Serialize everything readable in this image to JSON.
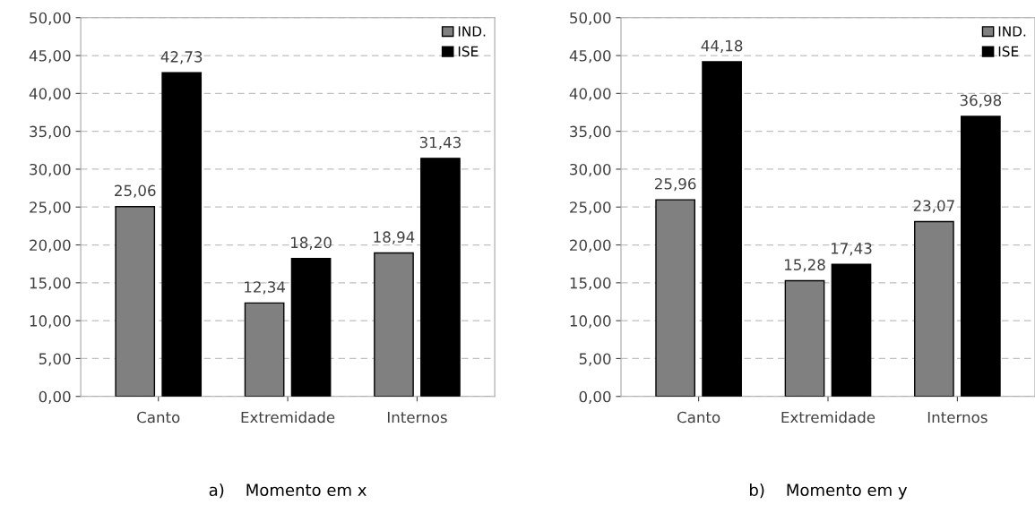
{
  "chart_data": [
    {
      "type": "bar",
      "title": "a)    Momento em x",
      "categories": [
        "Canto",
        "Extremidade",
        "Internos"
      ],
      "series": [
        {
          "name": "IND.",
          "color": "#808080",
          "values": [
            25.06,
            12.34,
            18.94
          ],
          "value_labels": [
            "25,06",
            "12,34",
            "18,94"
          ]
        },
        {
          "name": "ISE",
          "color": "#000000",
          "values": [
            42.73,
            18.2,
            31.43
          ],
          "value_labels": [
            "42,73",
            "18,20",
            "31,43"
          ]
        }
      ],
      "ylim": [
        0,
        50
      ],
      "yticks": [
        {
          "value": 0,
          "label": "0,00"
        },
        {
          "value": 5,
          "label": "5,00"
        },
        {
          "value": 10,
          "label": "10,00"
        },
        {
          "value": 15,
          "label": "15,00"
        },
        {
          "value": 20,
          "label": "20,00"
        },
        {
          "value": 25,
          "label": "25,00"
        },
        {
          "value": 30,
          "label": "30,00"
        },
        {
          "value": 35,
          "label": "35,00"
        },
        {
          "value": 40,
          "label": "40,00"
        },
        {
          "value": 45,
          "label": "45,00"
        },
        {
          "value": 50,
          "label": "50,00"
        }
      ],
      "grid": "y",
      "legend": "top right"
    },
    {
      "type": "bar",
      "title": "b)    Momento em y",
      "categories": [
        "Canto",
        "Extremidade",
        "Internos"
      ],
      "series": [
        {
          "name": "IND.",
          "color": "#808080",
          "values": [
            25.96,
            15.28,
            23.07
          ],
          "value_labels": [
            "25,96",
            "15,28",
            "23,07"
          ]
        },
        {
          "name": "ISE",
          "color": "#000000",
          "values": [
            44.18,
            17.43,
            36.98
          ],
          "value_labels": [
            "44,18",
            "17,43",
            "36,98"
          ]
        }
      ],
      "ylim": [
        0,
        50
      ],
      "yticks": [
        {
          "value": 0,
          "label": "0,00"
        },
        {
          "value": 5,
          "label": "5,00"
        },
        {
          "value": 10,
          "label": "10,00"
        },
        {
          "value": 15,
          "label": "15,00"
        },
        {
          "value": 20,
          "label": "20,00"
        },
        {
          "value": 25,
          "label": "25,00"
        },
        {
          "value": 30,
          "label": "30,00"
        },
        {
          "value": 35,
          "label": "35,00"
        },
        {
          "value": 40,
          "label": "40,00"
        },
        {
          "value": 45,
          "label": "45,00"
        },
        {
          "value": 50,
          "label": "50,00"
        }
      ],
      "grid": "y",
      "legend": "top right"
    }
  ]
}
